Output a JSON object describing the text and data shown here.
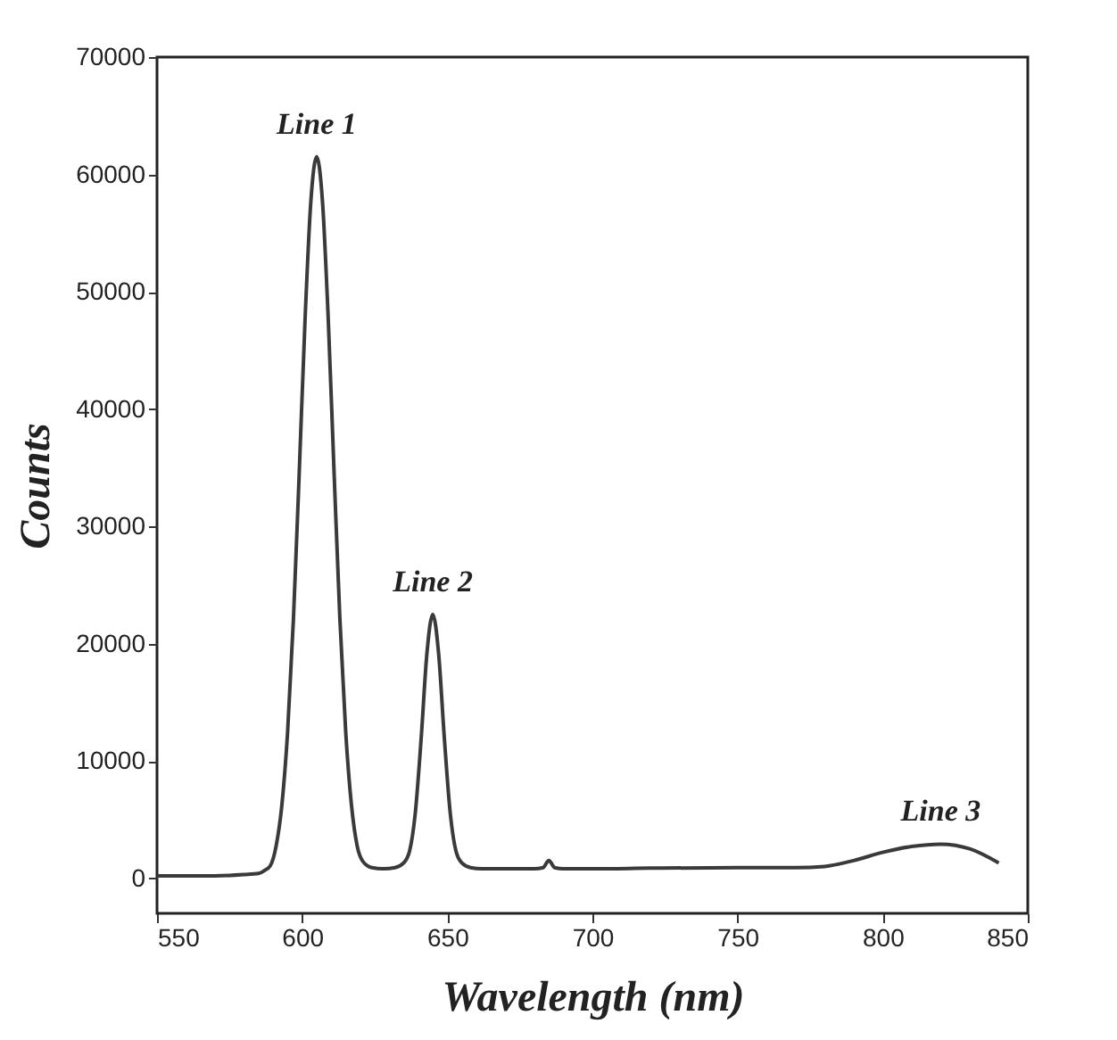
{
  "chart_data": {
    "type": "line",
    "xlabel": "Wavelength (nm)",
    "ylabel": "Counts",
    "x": [
      550,
      560,
      570,
      580,
      585,
      587,
      589,
      591,
      593,
      595,
      597,
      599,
      601,
      603,
      605,
      607,
      609,
      611,
      613,
      615,
      617,
      619,
      621,
      624,
      628,
      632,
      635,
      637,
      639,
      641,
      643,
      645,
      647,
      649,
      651,
      653,
      655,
      658,
      662,
      670,
      680,
      683,
      685,
      687,
      690,
      700,
      720,
      750,
      770,
      780,
      790,
      800,
      810,
      820,
      830,
      840
    ],
    "series": [
      {
        "color": "#3a3a3a",
        "values": [
          200,
          200,
          200,
          300,
          400,
          650,
          1050,
          2700,
          6200,
          12500,
          22100,
          34600,
          47600,
          57700,
          61500,
          57700,
          47600,
          34600,
          22100,
          12500,
          6200,
          2700,
          1400,
          900,
          800,
          900,
          1300,
          2300,
          5600,
          11900,
          19200,
          22500,
          19200,
          11900,
          5600,
          2300,
          1300,
          900,
          800,
          800,
          800,
          900,
          1500,
          900,
          800,
          800,
          850,
          900,
          900,
          1000,
          1500,
          2200,
          2700,
          2900,
          2500,
          1300
        ]
      }
    ],
    "xlim": [
      550,
      850
    ],
    "ylim": [
      -3000,
      70000
    ],
    "xticks": [
      550,
      600,
      650,
      700,
      750,
      800,
      850
    ],
    "yticks": [
      0,
      10000,
      20000,
      30000,
      40000,
      50000,
      60000,
      70000
    ],
    "annotations": [
      {
        "text": "Line 1",
        "x": 605,
        "y": 61500
      },
      {
        "text": "Line 2",
        "x": 645,
        "y": 22500
      },
      {
        "text": "Line 3",
        "x": 820,
        "y": 2900
      }
    ],
    "grid": false,
    "marker": "none",
    "line_style": "solid"
  }
}
